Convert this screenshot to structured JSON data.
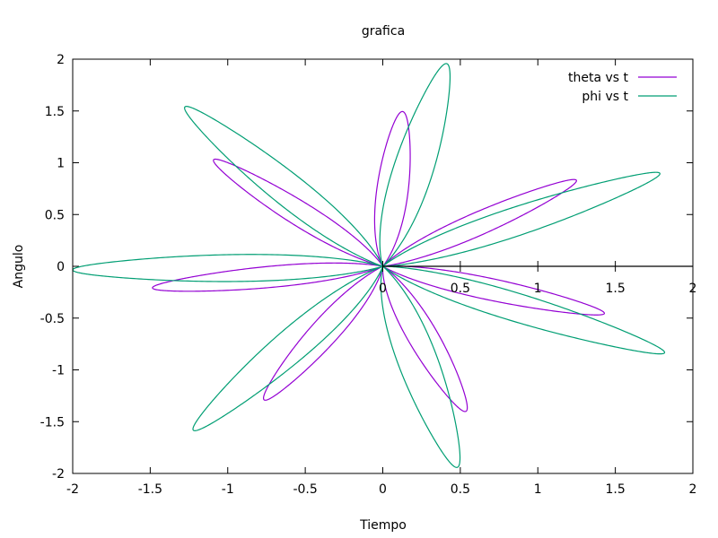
{
  "chart_data": {
    "type": "line",
    "title": "grafica",
    "xlabel": "Tiempo",
    "ylabel": "Angulo",
    "xlim": [
      -2,
      2
    ],
    "ylim": [
      -2,
      2
    ],
    "x_ticks": [
      "-2",
      "-1.5",
      "-1",
      "-0.5",
      "0",
      "0.5",
      "1",
      "1.5",
      "2"
    ],
    "y_ticks": [
      "2",
      "1.5",
      "1",
      "0.5",
      "0",
      "-0.5",
      "-1",
      "-1.5",
      "-2"
    ],
    "zero_axis_ticks": [
      "0",
      "0.5",
      "1",
      "1.5",
      "2"
    ],
    "grid": false,
    "legend_position": "top-right",
    "series": [
      {
        "name": "theta vs t",
        "color": "#9400d3",
        "curve": "polar rose",
        "petals": 7,
        "max_radius": 1.5,
        "phase_deg": 8,
        "petal_width_factor": 0.62
      },
      {
        "name": "phi vs t",
        "color": "#009e73",
        "curve": "polar rose",
        "petals": 7,
        "max_radius": 2.0,
        "phase_deg": 1,
        "petal_width_factor": 0.66
      }
    ]
  }
}
